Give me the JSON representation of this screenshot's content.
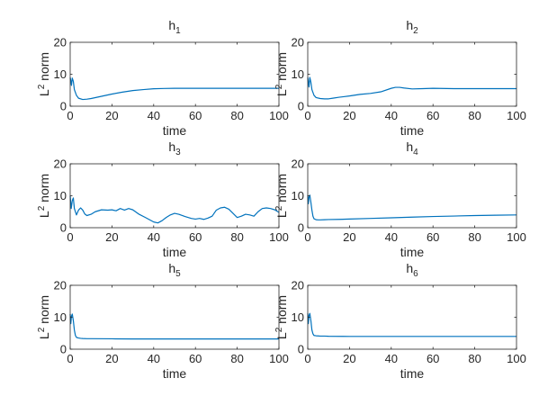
{
  "chart_data": [
    {
      "type": "line",
      "title_main": "h",
      "title_sub": "1",
      "xlabel": "time",
      "ylabel_main": "L",
      "ylabel_sup": "2",
      "ylabel_rest": " norm",
      "xlim": [
        0,
        100
      ],
      "ylim": [
        0,
        20
      ],
      "xticks": [
        0,
        20,
        40,
        60,
        80,
        100
      ],
      "yticks": [
        0,
        10,
        20
      ],
      "series": [
        {
          "color": "#0072BD",
          "x": [
            0,
            0.3,
            0.6,
            1,
            1.5,
            2,
            3,
            4,
            6,
            8,
            10,
            15,
            20,
            25,
            30,
            35,
            40,
            45,
            50,
            55,
            60,
            70,
            80,
            90,
            100
          ],
          "y": [
            9,
            8,
            6.5,
            8.8,
            7.8,
            5.2,
            3.4,
            2.5,
            2.1,
            2.2,
            2.4,
            3.1,
            3.8,
            4.4,
            4.9,
            5.2,
            5.45,
            5.55,
            5.6,
            5.6,
            5.6,
            5.6,
            5.6,
            5.6,
            5.6
          ]
        }
      ]
    },
    {
      "type": "line",
      "title_main": "h",
      "title_sub": "2",
      "xlabel": "time",
      "ylabel_main": "L",
      "ylabel_sup": "2",
      "ylabel_rest": " norm",
      "xlim": [
        0,
        100
      ],
      "ylim": [
        0,
        20
      ],
      "xticks": [
        0,
        20,
        40,
        60,
        80,
        100
      ],
      "yticks": [
        0,
        10,
        20
      ],
      "series": [
        {
          "color": "#0072BD",
          "x": [
            0,
            0.3,
            0.6,
            1,
            1.5,
            2,
            3,
            4,
            6,
            8,
            10,
            12,
            15,
            20,
            25,
            30,
            35,
            40,
            42,
            44,
            46,
            50,
            55,
            60,
            70,
            80,
            90,
            100
          ],
          "y": [
            9,
            7.5,
            6,
            9,
            7.5,
            5.2,
            3.4,
            2.7,
            2.4,
            2.3,
            2.3,
            2.5,
            2.8,
            3.2,
            3.7,
            4.0,
            4.5,
            5.6,
            5.9,
            5.9,
            5.7,
            5.4,
            5.5,
            5.6,
            5.5,
            5.5,
            5.5,
            5.5
          ]
        }
      ]
    },
    {
      "type": "line",
      "title_main": "h",
      "title_sub": "3",
      "xlabel": "time",
      "ylabel_main": "L",
      "ylabel_sup": "2",
      "ylabel_rest": " norm",
      "xlim": [
        0,
        100
      ],
      "ylim": [
        0,
        20
      ],
      "xticks": [
        0,
        20,
        40,
        60,
        80,
        100
      ],
      "yticks": [
        0,
        10,
        20
      ],
      "series": [
        {
          "color": "#0072BD",
          "x": [
            0,
            0.5,
            1,
            1.5,
            2,
            3,
            4,
            5,
            6,
            7,
            8,
            10,
            12,
            15,
            18,
            20,
            22,
            24,
            26,
            28,
            30,
            33,
            36,
            38,
            40,
            42,
            44,
            46,
            48,
            50,
            52,
            55,
            58,
            60,
            62,
            64,
            66,
            68,
            70,
            72,
            74,
            76,
            78,
            80,
            82,
            84,
            86,
            88,
            90,
            92,
            94,
            96,
            98,
            100
          ],
          "y": [
            10,
            6,
            8.5,
            9.3,
            6,
            4,
            5.5,
            6.2,
            5.5,
            4.3,
            3.8,
            4.2,
            5.0,
            5.6,
            5.5,
            5.6,
            5.3,
            6.0,
            5.5,
            6.0,
            5.6,
            4.2,
            3.2,
            2.5,
            1.8,
            1.5,
            2.2,
            3.2,
            4.0,
            4.5,
            4.2,
            3.5,
            2.9,
            2.7,
            2.9,
            2.6,
            3.0,
            3.6,
            5.5,
            6.2,
            6.4,
            5.8,
            4.5,
            3.2,
            3.6,
            4.2,
            4.0,
            3.6,
            5.0,
            6.0,
            6.2,
            6.0,
            5.6,
            4.8
          ]
        }
      ]
    },
    {
      "type": "line",
      "title_main": "h",
      "title_sub": "4",
      "xlabel": "time",
      "ylabel_main": "L",
      "ylabel_sup": "2",
      "ylabel_rest": " norm",
      "xlim": [
        0,
        100
      ],
      "ylim": [
        0,
        20
      ],
      "xticks": [
        0,
        20,
        40,
        60,
        80,
        100
      ],
      "yticks": [
        0,
        10,
        20
      ],
      "series": [
        {
          "color": "#0072BD",
          "x": [
            0,
            0.3,
            0.6,
            1,
            1.5,
            2,
            2.5,
            3,
            4,
            5,
            6,
            8,
            10,
            15,
            20,
            30,
            40,
            50,
            60,
            70,
            80,
            90,
            100
          ],
          "y": [
            10.2,
            7.5,
            9.5,
            10.2,
            8,
            5.5,
            3.6,
            2.8,
            2.5,
            2.45,
            2.45,
            2.5,
            2.55,
            2.6,
            2.7,
            2.9,
            3.1,
            3.3,
            3.5,
            3.65,
            3.8,
            3.9,
            4.0
          ]
        }
      ]
    },
    {
      "type": "line",
      "title_main": "h",
      "title_sub": "5",
      "xlabel": "time",
      "ylabel_main": "L",
      "ylabel_sup": "2",
      "ylabel_rest": " norm",
      "xlim": [
        0,
        100
      ],
      "ylim": [
        0,
        20
      ],
      "xticks": [
        0,
        20,
        40,
        60,
        80,
        100
      ],
      "yticks": [
        0,
        10,
        20
      ],
      "series": [
        {
          "color": "#0072BD",
          "x": [
            0,
            0.3,
            0.6,
            1,
            1.5,
            2,
            2.5,
            3,
            4,
            5,
            6,
            8,
            10,
            20,
            30,
            40,
            50,
            60,
            70,
            80,
            90,
            100
          ],
          "y": [
            11,
            8,
            10.3,
            11,
            9,
            6,
            4.3,
            3.7,
            3.5,
            3.4,
            3.35,
            3.3,
            3.3,
            3.25,
            3.2,
            3.2,
            3.2,
            3.2,
            3.2,
            3.2,
            3.2,
            3.2
          ]
        }
      ]
    },
    {
      "type": "line",
      "title_main": "h",
      "title_sub": "6",
      "xlabel": "time",
      "ylabel_main": "L",
      "ylabel_sup": "2",
      "ylabel_rest": " norm",
      "xlim": [
        0,
        100
      ],
      "ylim": [
        0,
        20
      ],
      "xticks": [
        0,
        20,
        40,
        60,
        80,
        100
      ],
      "yticks": [
        0,
        10,
        20
      ],
      "series": [
        {
          "color": "#0072BD",
          "x": [
            0,
            0.3,
            0.6,
            1,
            1.5,
            2,
            2.5,
            3,
            4,
            5,
            6,
            8,
            10,
            20,
            30,
            40,
            50,
            60,
            70,
            80,
            90,
            100
          ],
          "y": [
            11.2,
            8,
            10.5,
            11.2,
            9,
            6,
            4.8,
            4.3,
            4.2,
            4.15,
            4.1,
            4.1,
            4.05,
            4.0,
            4.0,
            4.0,
            4.0,
            4.0,
            4.0,
            4.0,
            4.0,
            4.0
          ]
        }
      ]
    }
  ]
}
